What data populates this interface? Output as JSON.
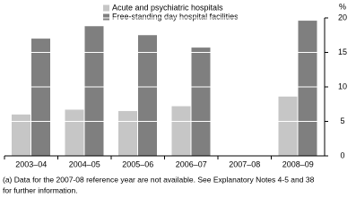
{
  "chart_data": {
    "type": "bar",
    "y_label": "%",
    "categories": [
      "2003–04",
      "2004–05",
      "2005–06",
      "2006–07",
      "2007–08",
      "2008–09"
    ],
    "series": [
      {
        "name": "Acute and psychiatric hospitals",
        "color": "#c6c6c6",
        "values": [
          6.0,
          6.7,
          6.5,
          7.2,
          null,
          8.6
        ]
      },
      {
        "name": "Free-standing day hospital facilities",
        "color": "#7f7f7f",
        "values": [
          17.0,
          18.8,
          17.5,
          15.7,
          null,
          19.6
        ]
      }
    ],
    "ylim": [
      0,
      20
    ],
    "yticks": [
      0,
      5,
      10,
      15,
      20
    ],
    "grid": true,
    "grid_color": "#ffffff",
    "legend": "top",
    "footnote": [
      "(a) Data for the 2007-08 reference year are not available. See Explanatory Notes 4-5 and 38",
      "for further information."
    ]
  }
}
